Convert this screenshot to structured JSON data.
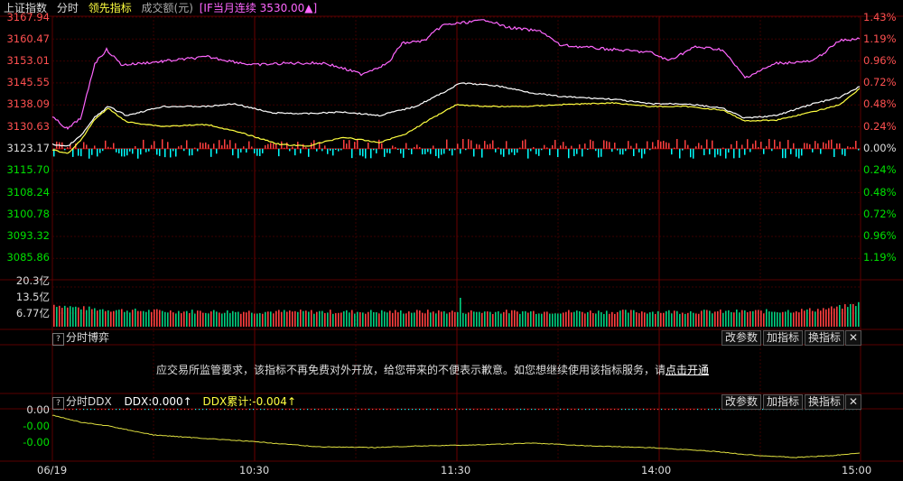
{
  "header": {
    "index_name": "上证指数",
    "period": "分时",
    "leading_indicator": "领先指标",
    "volume_label": "成交额(元)",
    "futures_label": "[IF当月连续 3530.00▲]"
  },
  "price_axis": {
    "left": [
      "3167.94",
      "3160.47",
      "3153.01",
      "3145.55",
      "3138.09",
      "3130.63",
      "3123.17",
      "3115.70",
      "3108.24",
      "3100.78",
      "3093.32",
      "3085.86"
    ],
    "right": [
      "1.43%",
      "1.19%",
      "0.96%",
      "0.72%",
      "0.48%",
      "0.24%",
      "0.00%",
      "0.24%",
      "0.48%",
      "0.72%",
      "0.96%",
      "1.19%"
    ]
  },
  "volume_axis": [
    "20.3亿",
    "13.5亿",
    "6.77亿"
  ],
  "fenshi_boyi": {
    "title": "分时博弈",
    "buttons": [
      "改参数",
      "加指标",
      "换指标"
    ],
    "notice_text": "应交易所监管要求，该指标不再免费对外开放，给您带来的不便表示歉意。如您想继续使用该指标服务，请",
    "notice_link": "点击开通"
  },
  "ddx": {
    "title": "分时DDX",
    "ddx_value": "DDX:0.000↑",
    "ddx_cum": "DDX累计:-0.004↑",
    "buttons": [
      "改参数",
      "加指标",
      "换指标"
    ],
    "axis": [
      "0.00",
      "-0.00",
      "-0.00"
    ]
  },
  "time_axis": [
    "06/19",
    "10:30",
    "11:30",
    "14:00",
    "15:00"
  ],
  "colors": {
    "up": "#ff4040",
    "down": "#00ffff",
    "white_line": "#ffffff",
    "yellow_line": "#ffff40",
    "futures_line": "#ff66ff",
    "grid": "#3a0000",
    "green_text": "#00e000",
    "red_text": "#ff5050"
  }
}
